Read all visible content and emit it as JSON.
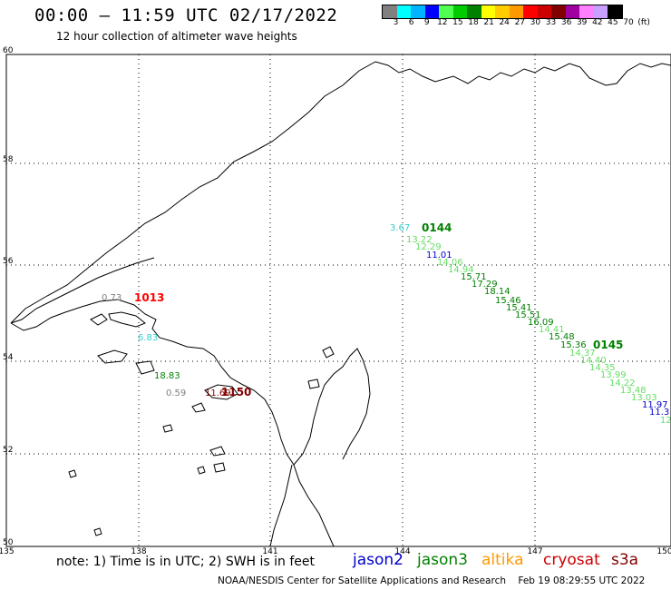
{
  "header": {
    "title": "00:00 — 11:59 UTC 02/17/2022",
    "subtitle": "12 hour collection of altimeter wave heights"
  },
  "color_scale": {
    "colors": [
      "#808080",
      "#00ffff",
      "#00b4ff",
      "#0000ff",
      "#50ff50",
      "#00cc00",
      "#008000",
      "#ffff00",
      "#ffcc00",
      "#ff9900",
      "#ff0000",
      "#cc0000",
      "#800000",
      "#a000a0",
      "#ff80ff",
      "#c8a0ff",
      "#000000"
    ],
    "labels": [
      "3",
      "6",
      "9",
      "12",
      "15",
      "18",
      "21",
      "24",
      "27",
      "30",
      "33",
      "36",
      "39",
      "42",
      "45",
      "70",
      "(ft)"
    ]
  },
  "map": {
    "lat_labels": [
      "60",
      "58",
      "56",
      "54",
      "52",
      "50"
    ],
    "lon_labels": [
      "135",
      "138",
      "141",
      "144",
      "147",
      "150"
    ],
    "observations": [
      {
        "text": "3.67",
        "color": "#33cccc"
      },
      {
        "text": "13.22",
        "color": "#66dd66"
      },
      {
        "text": "12.29",
        "color": "#66dd66"
      },
      {
        "text": "11.01",
        "color": "#0000cc"
      },
      {
        "text": "14.06",
        "color": "#66dd66"
      },
      {
        "text": "14.94",
        "color": "#66dd66"
      },
      {
        "text": "15.71",
        "color": "#008000"
      },
      {
        "text": "17.29",
        "color": "#008000"
      },
      {
        "text": "18.14",
        "color": "#008000"
      },
      {
        "text": "15.46",
        "color": "#008000"
      },
      {
        "text": "15.41",
        "color": "#008000"
      },
      {
        "text": "15.51",
        "color": "#008000"
      },
      {
        "text": "16.09",
        "color": "#008000"
      },
      {
        "text": "14.41",
        "color": "#66dd66"
      },
      {
        "text": "15.48",
        "color": "#008000"
      },
      {
        "text": "15.36",
        "color": "#008000"
      },
      {
        "text": "14.37",
        "color": "#66dd66"
      },
      {
        "text": "14.40",
        "color": "#66dd66"
      },
      {
        "text": "14.35",
        "color": "#66dd66"
      },
      {
        "text": "13.99",
        "color": "#66dd66"
      },
      {
        "text": "14.22",
        "color": "#66dd66"
      },
      {
        "text": "13.48",
        "color": "#66dd66"
      },
      {
        "text": "13.03",
        "color": "#66dd66"
      },
      {
        "text": "11.97",
        "color": "#0000cc"
      },
      {
        "text": "11.3",
        "color": "#0000cc"
      },
      {
        "text": "12",
        "color": "#66dd66"
      },
      {
        "text": "0.73",
        "color": "#808080"
      },
      {
        "text": "6.83",
        "color": "#33cccc"
      },
      {
        "text": "18.83",
        "color": "#008000"
      },
      {
        "text": "0.59",
        "color": "#808080"
      },
      {
        "text": "11.69",
        "color": "#800000"
      }
    ],
    "pass_labels": [
      {
        "text": "0144",
        "color": "#008000"
      },
      {
        "text": "0145",
        "color": "#008000"
      },
      {
        "text": "1013",
        "color": "#ff0000"
      },
      {
        "text": "1150",
        "color": "#800000"
      }
    ]
  },
  "legend": {
    "note": "note: 1) Time is in UTC; 2) SWH is in feet",
    "satellites": [
      {
        "name": "jason2",
        "color": "#0000cc"
      },
      {
        "name": "jason3",
        "color": "#008000"
      },
      {
        "name": "altika",
        "color": "#ff9900"
      },
      {
        "name": "cryosat",
        "color": "#cc0000"
      },
      {
        "name": "s3a",
        "color": "#800000"
      }
    ]
  },
  "footer": {
    "credit": "NOAA/NESDIS Center for Satellite Applications and Research",
    "timestamp": "Feb 19 08:29:55 UTC 2022"
  }
}
